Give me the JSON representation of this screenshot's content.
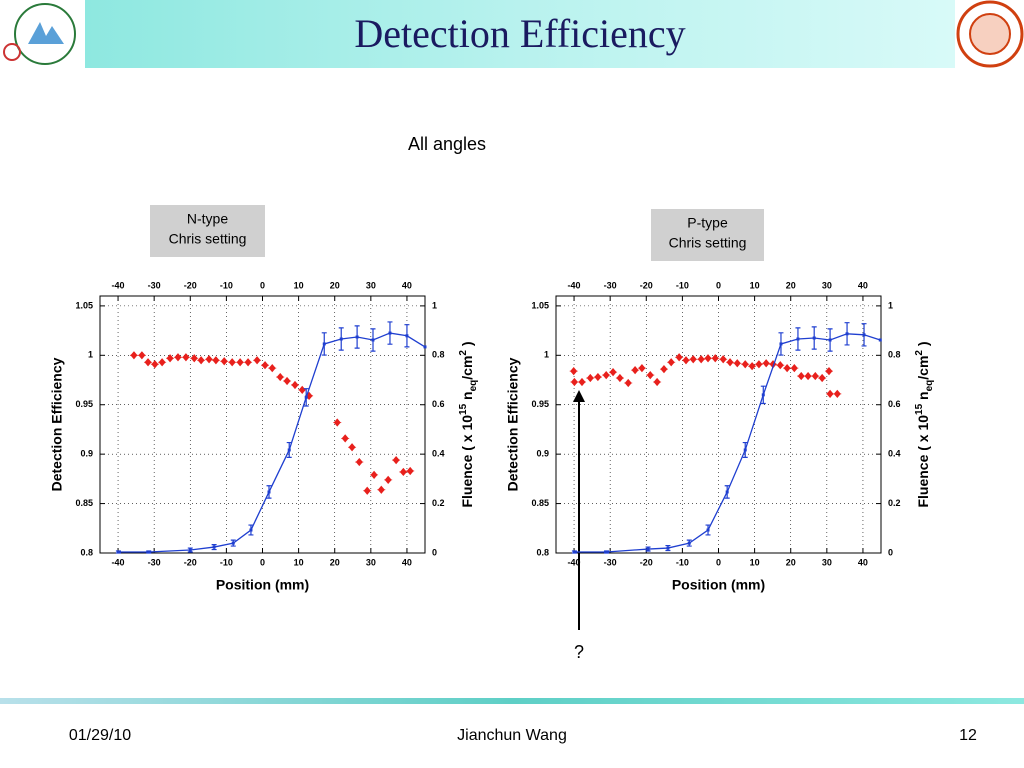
{
  "slide": {
    "title": "Detection Efficiency",
    "subtitle": "All angles",
    "annotation": "?",
    "footer": {
      "date": "01/29/10",
      "author": "Jianchun Wang",
      "page": "12"
    }
  },
  "chart_data": [
    {
      "type": "line",
      "label": [
        "N-type",
        "Chris setting"
      ],
      "xlabel": "Position (mm)",
      "ylabel": "Detection Efficiency",
      "y2label": [
        "Fluence ( x 10",
        "15",
        " n",
        "eq",
        "/cm",
        "2",
        " )"
      ],
      "xlim": [
        -45,
        45
      ],
      "xticks": [
        -40,
        -30,
        -20,
        -10,
        0,
        10,
        20,
        30,
        40
      ],
      "ylim": [
        0.8,
        1.06
      ],
      "yticks": [
        0.8,
        0.85,
        0.9,
        0.95,
        1,
        1.05
      ],
      "y2lim": [
        0,
        1.04
      ],
      "y2ticks": [
        0,
        0.2,
        0.4,
        0.6,
        0.8,
        1
      ],
      "grid": true,
      "series": [
        {
          "color": "#e8201c",
          "mode": "markers",
          "x": [
            -35.6,
            -33.4,
            -31.7,
            -29.8,
            -27.8,
            -25.6,
            -23.4,
            -21.2,
            -18.9,
            -17,
            -14.8,
            -12.9,
            -10.6,
            -8.4,
            -6.2,
            -4,
            -1.5,
            0.7,
            2.7,
            4.9,
            6.8,
            9,
            11,
            12.9,
            20.7,
            22.9,
            24.8,
            26.8,
            29,
            30.9,
            32.9,
            34.8,
            37,
            39,
            40.9
          ],
          "values": [
            1.0,
            1.0,
            0.993,
            0.991,
            0.993,
            0.997,
            0.998,
            0.998,
            0.997,
            0.995,
            0.996,
            0.995,
            0.994,
            0.993,
            0.993,
            0.993,
            0.995,
            0.99,
            0.987,
            0.978,
            0.974,
            0.97,
            0.965,
            0.959,
            0.932,
            0.916,
            0.907,
            0.892,
            0.863,
            0.879,
            0.864,
            0.874,
            0.894,
            0.882,
            0.883
          ]
        },
        {
          "color": "#1f3fd0",
          "mode": "lines+markers",
          "axis": "y2",
          "x": [
            -39.9,
            -31.5,
            -20,
            -13.4,
            -8.1,
            -3.2,
            1.8,
            7.4,
            12.1,
            17.1,
            21.8,
            26.2,
            30.6,
            35.3,
            40,
            45
          ],
          "values": [
            0.004,
            0.004,
            0.012,
            0.024,
            0.04,
            0.093,
            0.247,
            0.417,
            0.63,
            0.846,
            0.866,
            0.874,
            0.862,
            0.89,
            0.879,
            0.834
          ],
          "errors": [
            0.004,
            0.004,
            0.008,
            0.01,
            0.012,
            0.02,
            0.025,
            0.03,
            0.035,
            0.045,
            0.045,
            0.045,
            0.045,
            0.045,
            0.045,
            null
          ]
        }
      ]
    },
    {
      "type": "line",
      "label": [
        "P-type",
        "Chris setting"
      ],
      "xlabel": "Position (mm)",
      "ylabel": "Detection Efficiency",
      "y2label": [
        "Fluence ( x 10",
        "15",
        " n",
        "eq",
        "/cm",
        "2",
        " )"
      ],
      "xlim": [
        -45,
        45
      ],
      "xticks": [
        -40,
        -30,
        -20,
        -10,
        0,
        10,
        20,
        30,
        40
      ],
      "ylim": [
        0.8,
        1.06
      ],
      "yticks": [
        0.8,
        0.85,
        0.9,
        0.95,
        1,
        1.05
      ],
      "y2lim": [
        0,
        1.04
      ],
      "y2ticks": [
        0,
        0.2,
        0.4,
        0.6,
        0.8,
        1
      ],
      "grid": true,
      "series": [
        {
          "color": "#e8201c",
          "mode": "markers",
          "x": [
            -40.1,
            -39.9,
            -37.8,
            -35.5,
            -33.4,
            -31.1,
            -29.2,
            -27.3,
            -25,
            -23.1,
            -21.2,
            -18.9,
            -17,
            -15.1,
            -13.1,
            -10.9,
            -9,
            -7,
            -4.8,
            -2.9,
            -0.9,
            1.3,
            3.2,
            5.2,
            7.4,
            9.3,
            11.2,
            13.2,
            15.1,
            17.1,
            19,
            21,
            22.9,
            24.8,
            26.8,
            28.7,
            30.6,
            30.9,
            32.9
          ],
          "values": [
            0.984,
            0.973,
            0.973,
            0.977,
            0.978,
            0.98,
            0.983,
            0.977,
            0.972,
            0.985,
            0.987,
            0.98,
            0.973,
            0.986,
            0.993,
            0.998,
            0.995,
            0.996,
            0.996,
            0.997,
            0.997,
            0.996,
            0.993,
            0.992,
            0.991,
            0.989,
            0.991,
            0.992,
            0.991,
            0.99,
            0.987,
            0.987,
            0.979,
            0.979,
            0.979,
            0.977,
            0.984,
            0.961,
            0.961
          ]
        },
        {
          "color": "#1f3fd0",
          "mode": "lines+markers",
          "axis": "y2",
          "x": [
            -39.9,
            -31,
            -19.5,
            -14,
            -8.1,
            -2.9,
            2.4,
            7.4,
            12.4,
            17.3,
            22,
            26.5,
            30.9,
            35.6,
            40.3,
            44.8
          ],
          "values": [
            0.004,
            0.004,
            0.016,
            0.02,
            0.04,
            0.093,
            0.247,
            0.417,
            0.64,
            0.846,
            0.866,
            0.87,
            0.862,
            0.887,
            0.883,
            0.862
          ],
          "errors": [
            0.004,
            0.004,
            0.008,
            0.01,
            0.012,
            0.02,
            0.025,
            0.03,
            0.035,
            0.045,
            0.045,
            0.045,
            0.045,
            0.045,
            0.045,
            null
          ]
        }
      ]
    }
  ]
}
